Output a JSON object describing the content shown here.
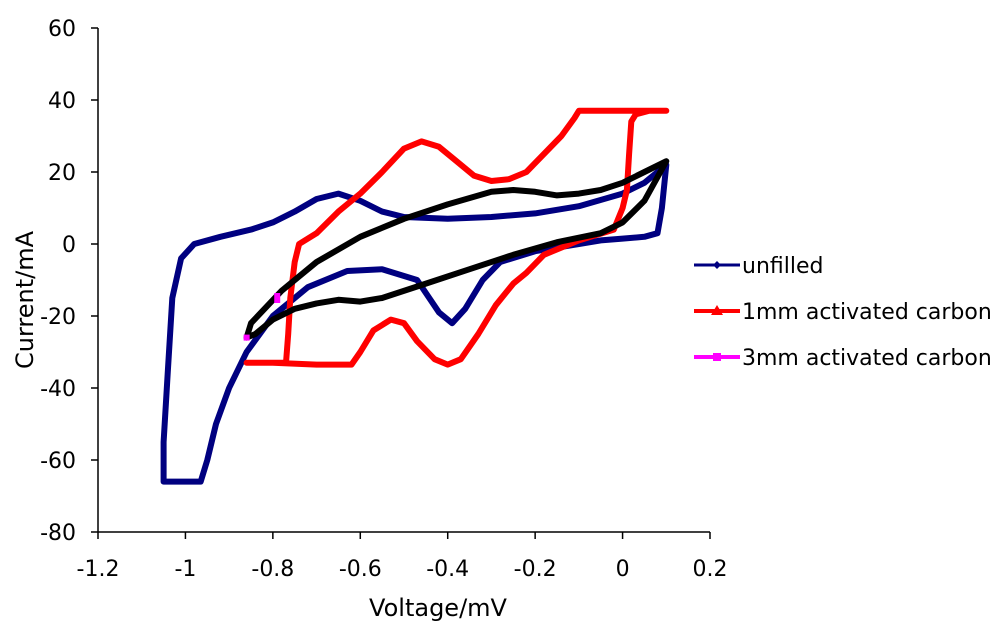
{
  "chart_data": {
    "type": "line",
    "title": "",
    "xlabel": "Voltage/mV",
    "ylabel": "Current/mA",
    "xlim": [
      -1.2,
      0.2
    ],
    "ylim": [
      -80,
      60
    ],
    "x_ticks": [
      "-1.2",
      "-1",
      "-0.8",
      "-0.6",
      "-0.4",
      "-0.2",
      "0",
      "0.2"
    ],
    "y_ticks": [
      "60",
      "40",
      "20",
      "0",
      "-20",
      "-40",
      "-60",
      "-80"
    ],
    "grid": false,
    "legend_position": "right",
    "series": [
      {
        "name": "unfilled",
        "color": "#000080",
        "marker": "diamond",
        "points": [
          [
            0.1,
            22
          ],
          [
            0.09,
            10
          ],
          [
            0.08,
            3
          ],
          [
            0.05,
            2
          ],
          [
            0.0,
            1.5
          ],
          [
            -0.05,
            1
          ],
          [
            -0.1,
            0
          ],
          [
            -0.2,
            -2
          ],
          [
            -0.28,
            -5
          ],
          [
            -0.32,
            -10
          ],
          [
            -0.36,
            -18
          ],
          [
            -0.39,
            -22
          ],
          [
            -0.42,
            -19
          ],
          [
            -0.47,
            -10
          ],
          [
            -0.55,
            -7
          ],
          [
            -0.63,
            -7.5
          ],
          [
            -0.72,
            -12
          ],
          [
            -0.8,
            -20
          ],
          [
            -0.86,
            -30
          ],
          [
            -0.9,
            -40
          ],
          [
            -0.93,
            -50
          ],
          [
            -0.95,
            -60
          ],
          [
            -0.965,
            -66
          ],
          [
            -1.05,
            -66
          ],
          [
            -1.05,
            -55
          ],
          [
            -1.04,
            -35
          ],
          [
            -1.03,
            -15
          ],
          [
            -1.01,
            -4
          ],
          [
            -0.98,
            0
          ],
          [
            -0.92,
            2
          ],
          [
            -0.85,
            4
          ],
          [
            -0.8,
            6
          ],
          [
            -0.75,
            9
          ],
          [
            -0.7,
            12.5
          ],
          [
            -0.65,
            14
          ],
          [
            -0.6,
            12
          ],
          [
            -0.55,
            9
          ],
          [
            -0.5,
            7.5
          ],
          [
            -0.4,
            7
          ],
          [
            -0.3,
            7.5
          ],
          [
            -0.2,
            8.5
          ],
          [
            -0.1,
            10.5
          ],
          [
            0.0,
            14
          ],
          [
            0.05,
            17
          ],
          [
            0.1,
            22
          ]
        ]
      },
      {
        "name": "1mm activated carbon",
        "color": "#ff0000",
        "marker": "triangle",
        "points": [
          [
            0.1,
            37
          ],
          [
            0.0,
            37
          ],
          [
            -0.1,
            37
          ],
          [
            -0.11,
            35
          ],
          [
            -0.14,
            30
          ],
          [
            -0.18,
            25
          ],
          [
            -0.22,
            20
          ],
          [
            -0.26,
            18
          ],
          [
            -0.3,
            17.5
          ],
          [
            -0.34,
            19
          ],
          [
            -0.38,
            23
          ],
          [
            -0.42,
            27
          ],
          [
            -0.46,
            28.5
          ],
          [
            -0.5,
            26.5
          ],
          [
            -0.55,
            20
          ],
          [
            -0.6,
            14
          ],
          [
            -0.65,
            9
          ],
          [
            -0.7,
            3
          ],
          [
            -0.74,
            0
          ],
          [
            -0.75,
            -5
          ],
          [
            -0.76,
            -15
          ],
          [
            -0.765,
            -25
          ],
          [
            -0.77,
            -33
          ],
          [
            -0.86,
            -33
          ],
          [
            -0.8,
            -33
          ],
          [
            -0.7,
            -33.5
          ],
          [
            -0.62,
            -33.5
          ],
          [
            -0.6,
            -30
          ],
          [
            -0.57,
            -24
          ],
          [
            -0.53,
            -21
          ],
          [
            -0.5,
            -22
          ],
          [
            -0.47,
            -27
          ],
          [
            -0.43,
            -32
          ],
          [
            -0.4,
            -33.5
          ],
          [
            -0.37,
            -32
          ],
          [
            -0.33,
            -25
          ],
          [
            -0.29,
            -17
          ],
          [
            -0.25,
            -11
          ],
          [
            -0.22,
            -8
          ],
          [
            -0.18,
            -3
          ],
          [
            -0.1,
            1
          ],
          [
            -0.02,
            4
          ],
          [
            0.0,
            10
          ],
          [
            0.01,
            15
          ],
          [
            0.015,
            25
          ],
          [
            0.02,
            34
          ],
          [
            0.03,
            36
          ],
          [
            0.06,
            37
          ],
          [
            0.1,
            37
          ]
        ]
      },
      {
        "name": "3mm activated carbon",
        "color": "#ff00ff",
        "marker": "square",
        "points": []
      },
      {
        "name": "",
        "color": "#000000",
        "marker": "square",
        "points": [
          [
            0.1,
            23
          ],
          [
            0.05,
            20
          ],
          [
            0.0,
            17
          ],
          [
            -0.05,
            15
          ],
          [
            -0.1,
            14
          ],
          [
            -0.15,
            13.5
          ],
          [
            -0.2,
            14.5
          ],
          [
            -0.25,
            15
          ],
          [
            -0.3,
            14.5
          ],
          [
            -0.4,
            11
          ],
          [
            -0.5,
            7
          ],
          [
            -0.6,
            2
          ],
          [
            -0.7,
            -5
          ],
          [
            -0.78,
            -13
          ],
          [
            -0.85,
            -22
          ],
          [
            -0.86,
            -26
          ],
          [
            -0.84,
            -25
          ],
          [
            -0.8,
            -21
          ],
          [
            -0.75,
            -18
          ],
          [
            -0.7,
            -16.5
          ],
          [
            -0.65,
            -15.5
          ],
          [
            -0.6,
            -16
          ],
          [
            -0.55,
            -15
          ],
          [
            -0.45,
            -11
          ],
          [
            -0.35,
            -7
          ],
          [
            -0.25,
            -3
          ],
          [
            -0.15,
            0.5
          ],
          [
            -0.05,
            3
          ],
          [
            0.0,
            6
          ],
          [
            0.05,
            12
          ],
          [
            0.1,
            23
          ]
        ]
      }
    ]
  }
}
